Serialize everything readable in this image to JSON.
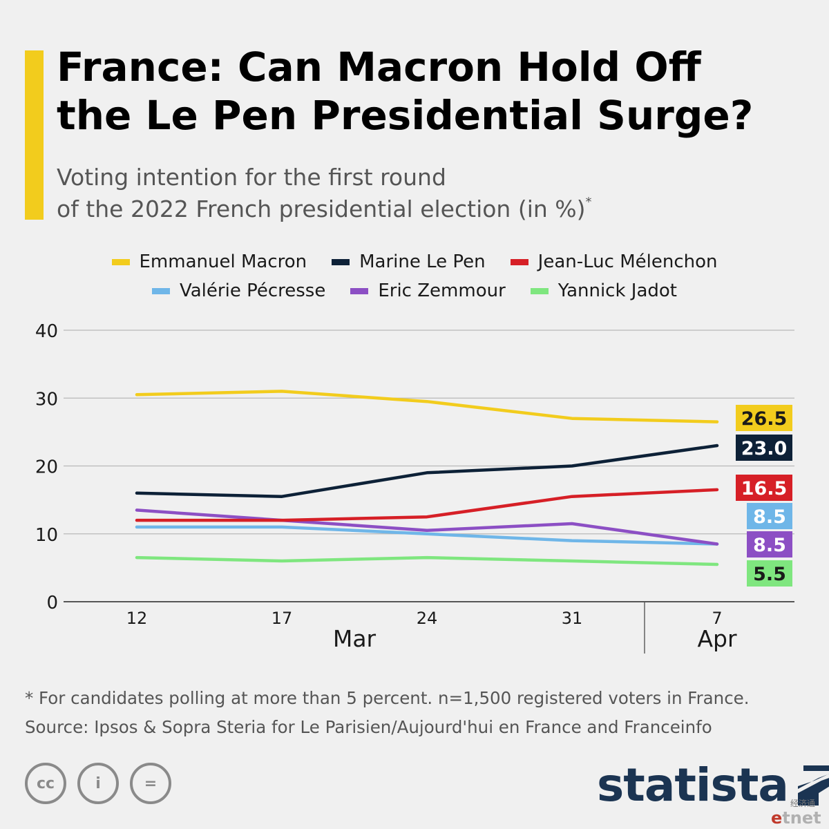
{
  "header": {
    "title_line1": "France: Can Macron Hold Off",
    "title_line2": "the Le Pen Presidential Surge?",
    "subtitle_line1": "Voting intention for the first round",
    "subtitle_line2": "of the 2022 French presidential election (in %)",
    "subtitle_mark": "*",
    "accent_color": "#f2cc1d"
  },
  "chart_data": {
    "type": "line",
    "title": "France: Can Macron Hold Off the Le Pen Presidential Surge?",
    "x": [
      "12",
      "17",
      "24",
      "31",
      "7"
    ],
    "x_groups": [
      {
        "label": "Mar",
        "span": [
          "12",
          "31"
        ]
      },
      {
        "label": "Apr",
        "span": [
          "7",
          "7"
        ]
      }
    ],
    "ylim": [
      0,
      40
    ],
    "yticks": [
      0,
      10,
      20,
      30,
      40
    ],
    "grid": true,
    "legend_placement": "top",
    "series": [
      {
        "name": "Emmanuel Macron",
        "color": "#f2cc1d",
        "values": [
          30.5,
          31,
          29.5,
          27,
          26.5
        ],
        "end_label": "26.5",
        "label_color": "#f2cc1d",
        "label_text_color": "#1a1a1a"
      },
      {
        "name": "Marine Le Pen",
        "color": "#0d2137",
        "values": [
          16,
          15.5,
          19,
          20,
          23
        ],
        "end_label": "23.0",
        "label_color": "#0d2137",
        "label_text_color": "#ffffff"
      },
      {
        "name": "Jean-Luc Mélenchon",
        "color": "#d61f26",
        "values": [
          12,
          12,
          12.5,
          15.5,
          16.5
        ],
        "end_label": "16.5",
        "label_color": "#d61f26",
        "label_text_color": "#ffffff"
      },
      {
        "name": "Valérie Pécresse",
        "color": "#6fb6e8",
        "values": [
          11,
          11,
          10,
          9,
          8.5
        ],
        "end_label": "8.5",
        "label_color": "#6fb6e8",
        "label_text_color": "#ffffff"
      },
      {
        "name": "Eric Zemmour",
        "color": "#8c4fc4",
        "values": [
          13.5,
          12,
          10.5,
          11.5,
          8.5
        ],
        "end_label": "8.5",
        "label_color": "#8c4fc4",
        "label_text_color": "#ffffff"
      },
      {
        "name": "Yannick Jadot",
        "color": "#7fe67f",
        "values": [
          6.5,
          6,
          6.5,
          6,
          5.5
        ],
        "end_label": "5.5",
        "label_color": "#7fe67f",
        "label_text_color": "#1a1a1a"
      }
    ]
  },
  "footer": {
    "note": "* For candidates polling at more than 5 percent. n=1,500 registered voters in France.",
    "source": "Source: Ipsos & Sopra Steria for Le Parisien/Aujourd'hui en France and Franceinfo",
    "brand": "statista",
    "cc_icons": [
      "cc-icon",
      "attribution-icon",
      "no-derivatives-icon"
    ],
    "cc_glyphs": [
      "cc",
      "i",
      "="
    ],
    "watermark_cn": "经济通",
    "watermark_e": "e",
    "watermark_rest": "tnet"
  }
}
